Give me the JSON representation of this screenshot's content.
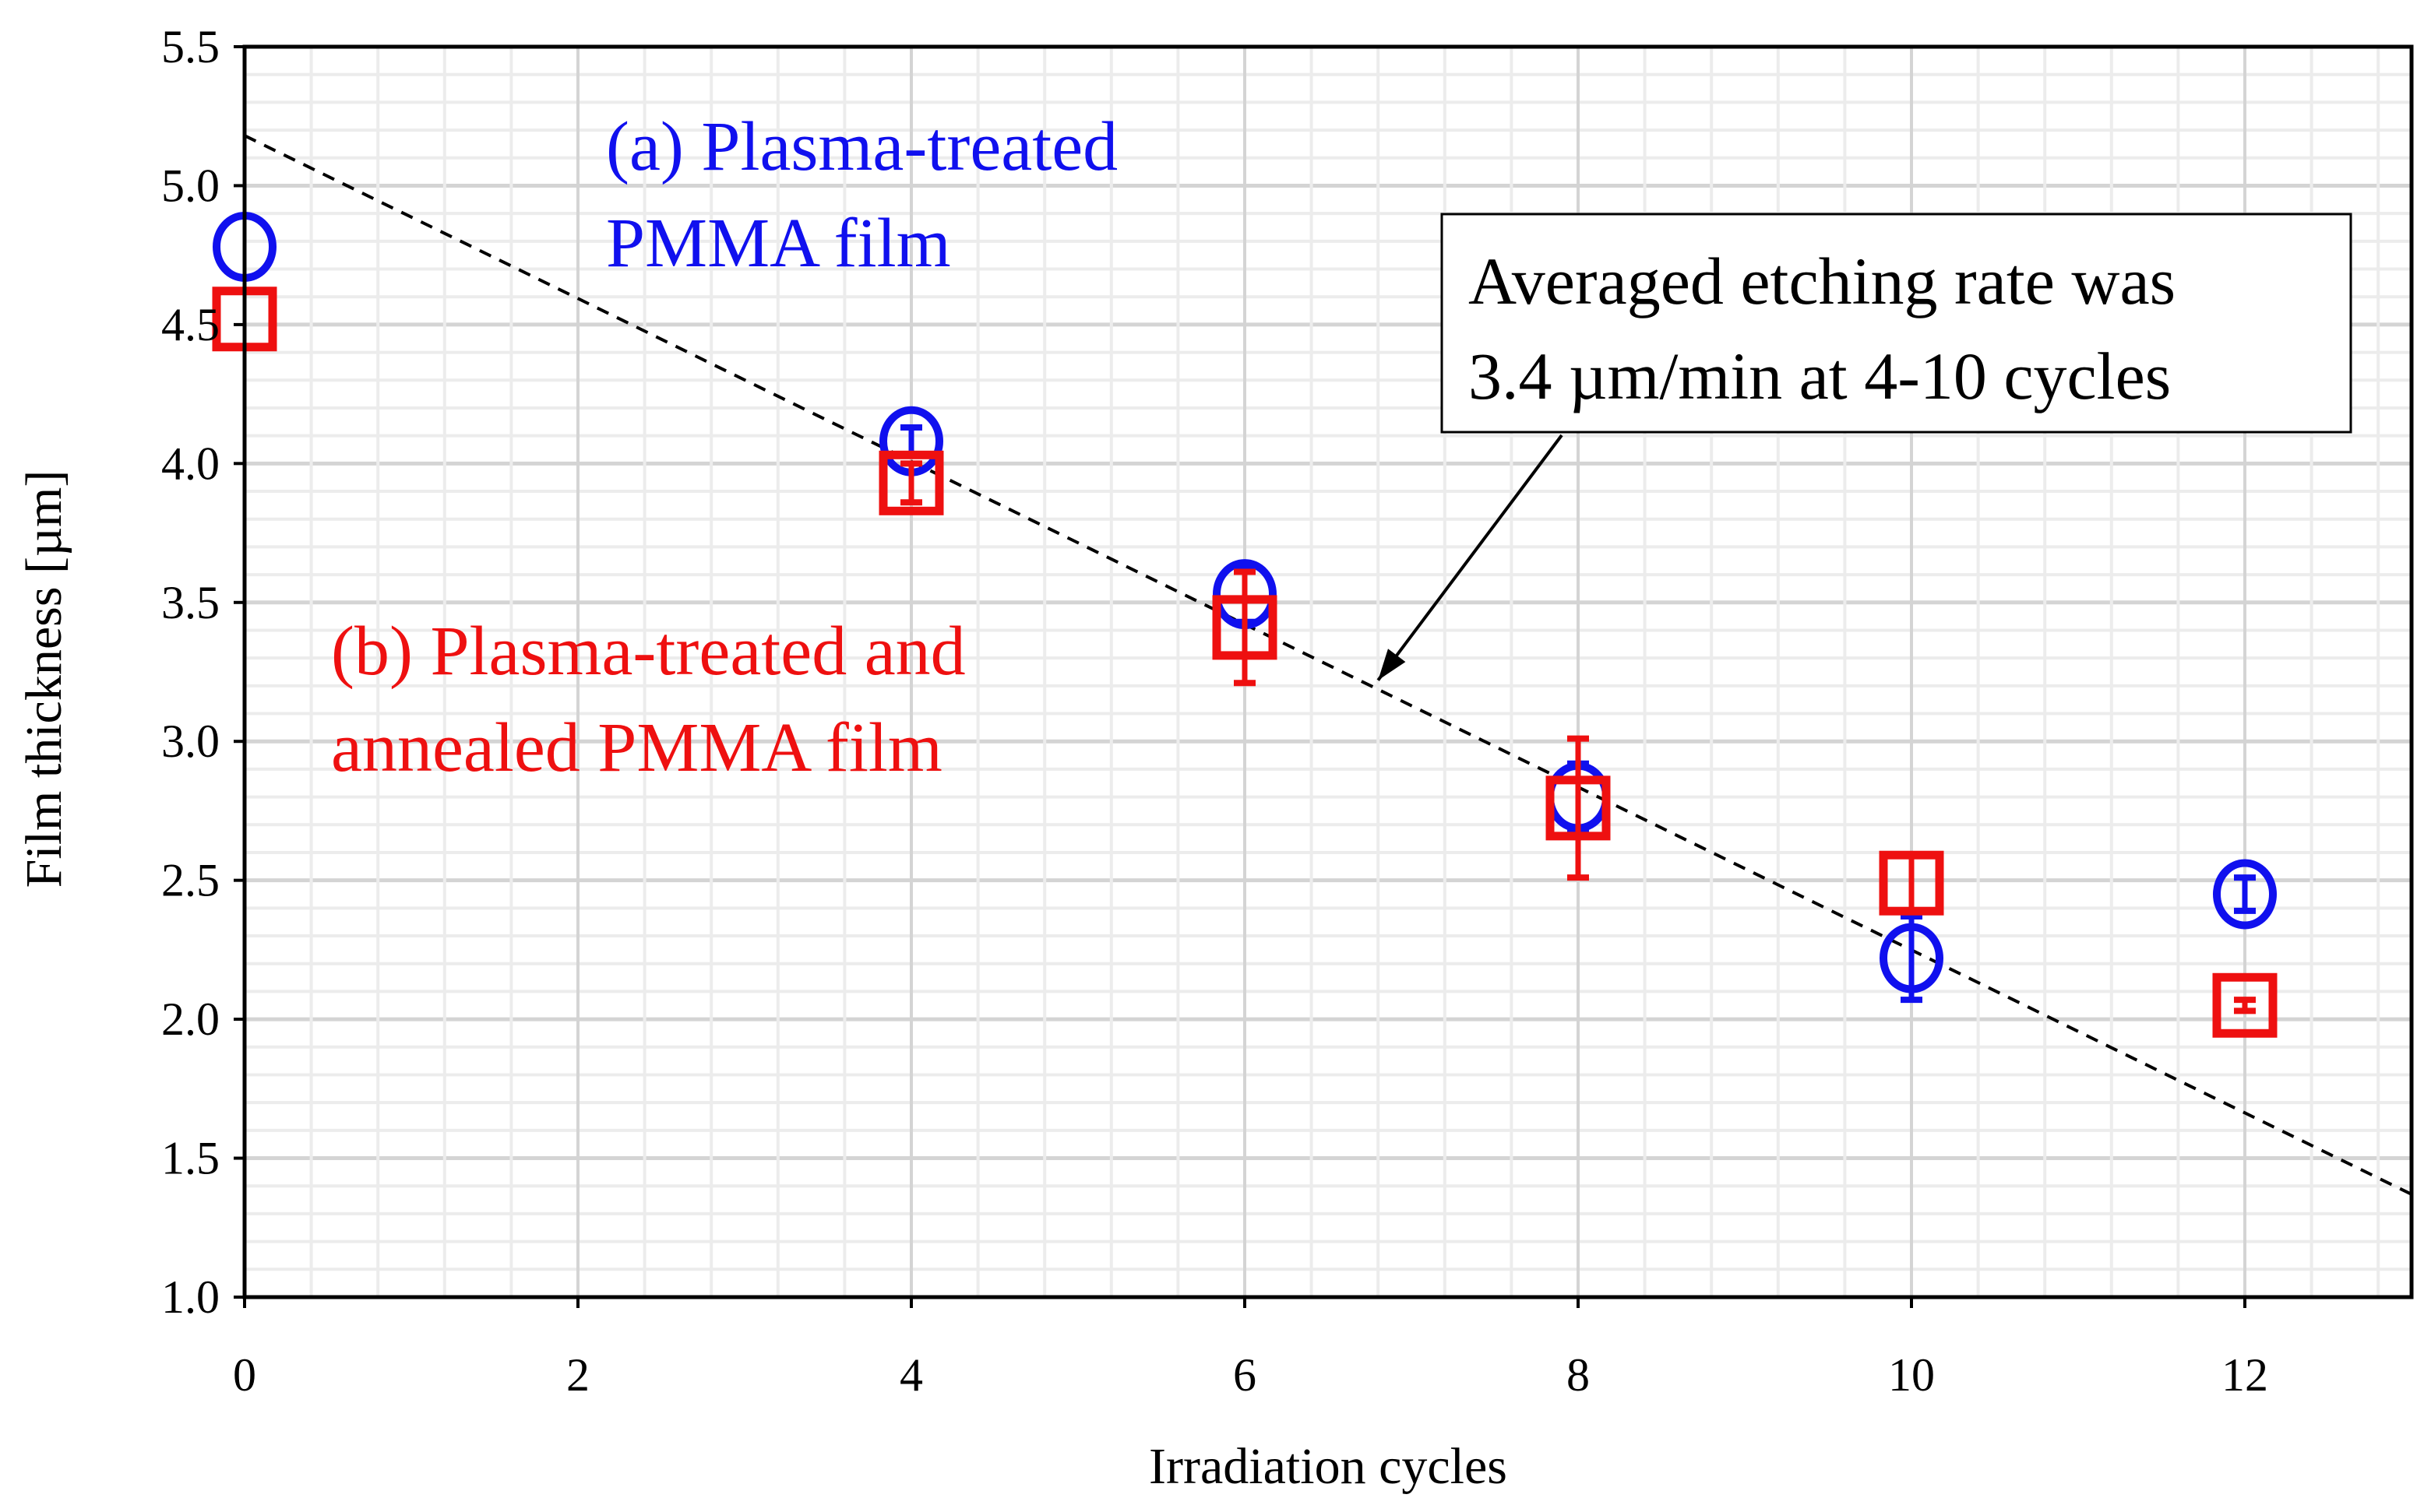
{
  "chart_data": {
    "type": "scatter",
    "title": "",
    "xlabel": "Irradiation cycles",
    "ylabel": "Film thickness [µm]",
    "xlim": [
      0,
      13
    ],
    "ylim": [
      1.0,
      5.5
    ],
    "xticks": [
      0,
      2,
      4,
      6,
      8,
      10,
      12
    ],
    "xtick_labels": [
      "0",
      "2",
      "4",
      "6",
      "8",
      "10",
      "12"
    ],
    "yticks": [
      1.0,
      1.5,
      2.0,
      2.5,
      3.0,
      3.5,
      4.0,
      4.5,
      5.0,
      5.5
    ],
    "ytick_labels": [
      "1.0",
      "1.5",
      "2.0",
      "2.5",
      "3.0",
      "3.5",
      "4.0",
      "4.5",
      "5.0",
      "5.5"
    ],
    "grid": true,
    "series": [
      {
        "name": "(a) Plasma-treated PMMA film",
        "label_lines": [
          "(a) Plasma-treated",
          "PMMA film"
        ],
        "marker": "circle",
        "color": "#1010ee",
        "x": [
          0,
          4,
          6,
          8,
          10,
          12
        ],
        "y": [
          4.78,
          4.08,
          3.53,
          2.8,
          2.22,
          2.45
        ],
        "err": [
          0.0,
          0.05,
          0.1,
          0.12,
          0.15,
          0.06
        ]
      },
      {
        "name": "(b) Plasma-treated and annealed PMMA film",
        "label_lines": [
          "(b) Plasma-treated and",
          "annealed PMMA film"
        ],
        "marker": "square",
        "color": "#ee1010",
        "x": [
          0,
          4,
          6,
          8,
          10,
          12
        ],
        "y": [
          4.52,
          3.93,
          3.41,
          2.76,
          2.49,
          2.05
        ],
        "err": [
          0.0,
          0.07,
          0.2,
          0.25,
          0.1,
          0.02
        ]
      }
    ],
    "trendline": {
      "style": "dashed",
      "color": "#000000",
      "x": [
        0,
        13
      ],
      "y": [
        5.18,
        1.37
      ]
    },
    "annotation": {
      "lines": [
        "Averaged etching rate was",
        "3.4 µm/min at 4-10 cycles"
      ],
      "arrow_to": [
        6.8,
        3.22
      ]
    }
  }
}
